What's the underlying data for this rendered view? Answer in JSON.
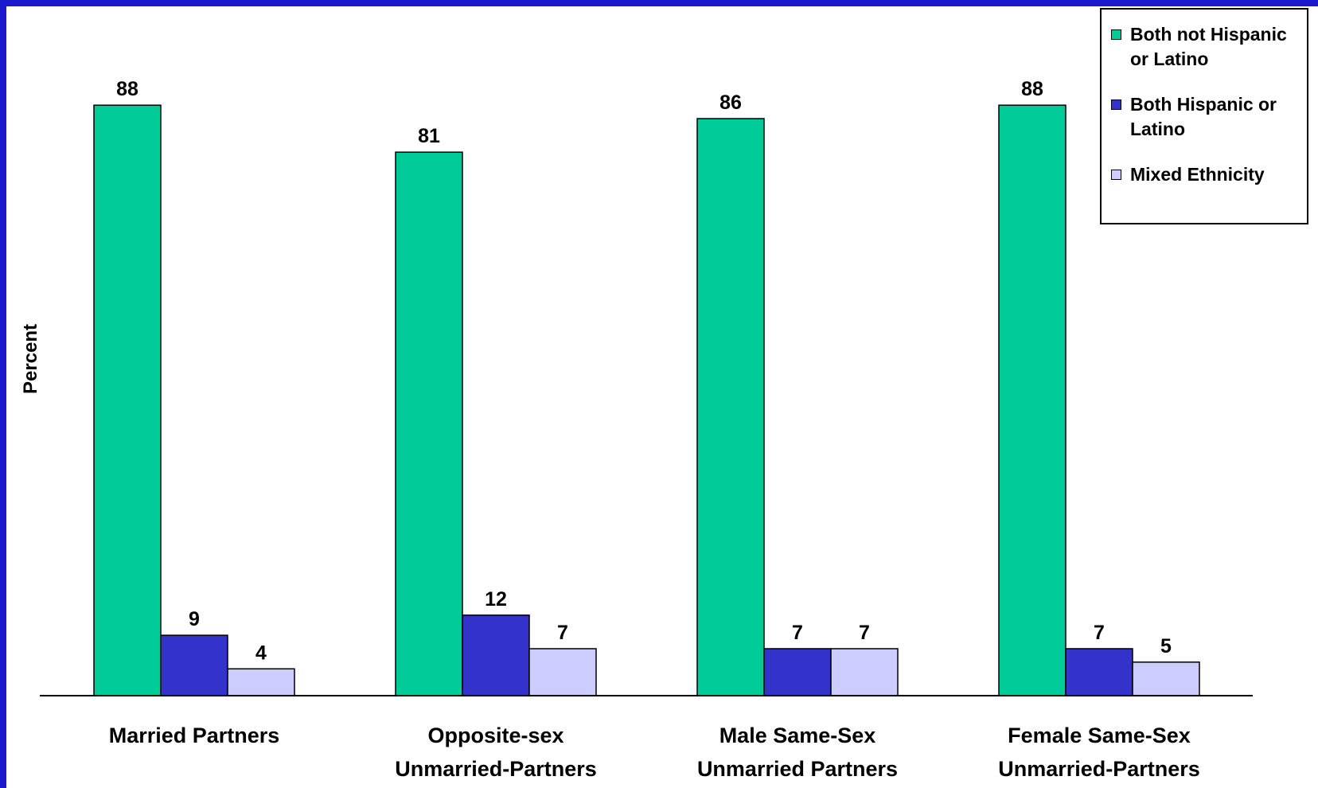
{
  "chart_data": {
    "type": "bar",
    "title": "",
    "xlabel": "",
    "ylabel": "Percent",
    "ylim": [
      0,
      100
    ],
    "grid": false,
    "legend_position": "top-right",
    "categories": [
      [
        "Married Partners"
      ],
      [
        "Opposite-sex",
        "Unmarried-Partners"
      ],
      [
        "Male Same-Sex",
        "Unmarried Partners"
      ],
      [
        "Female Same-Sex",
        "Unmarried-Partners"
      ]
    ],
    "series": [
      {
        "name": "Both not Hispanic or Latino",
        "color": "#00cc99",
        "values": [
          88,
          81,
          86,
          88
        ]
      },
      {
        "name": "Both Hispanic or Latino",
        "color": "#3333cc",
        "values": [
          9,
          12,
          7,
          7
        ]
      },
      {
        "name": "Mixed Ethnicity",
        "color": "#ccccff",
        "values": [
          4,
          7,
          7,
          5
        ]
      }
    ]
  }
}
